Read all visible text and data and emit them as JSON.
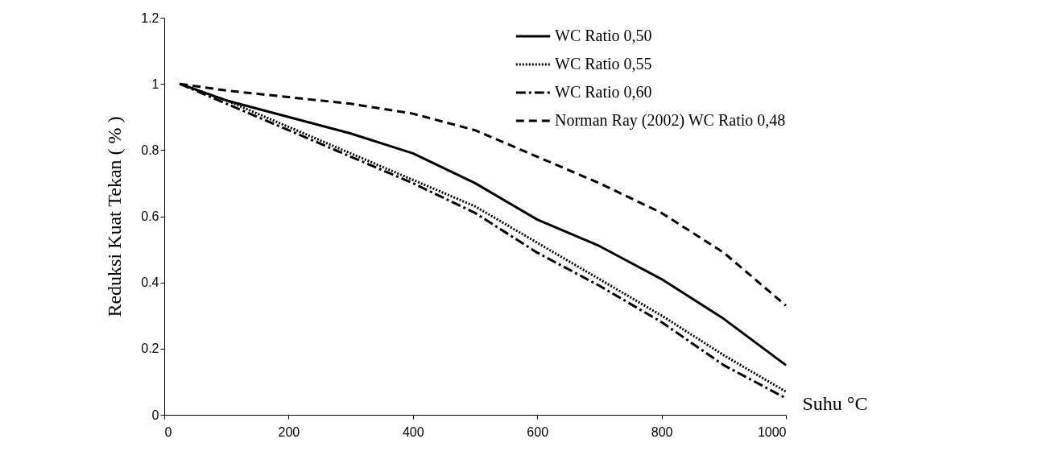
{
  "chart_data": {
    "type": "line",
    "xlabel": "Suhu °C",
    "ylabel": "Reduksi Kuat Tekan ( % )",
    "xlim": [
      0,
      1000
    ],
    "xticks": [
      0,
      200,
      400,
      600,
      800,
      1000
    ],
    "ylim": [
      0,
      1.2
    ],
    "yticks": [
      0,
      0.2,
      0.4,
      0.6,
      0.8,
      1,
      1.2
    ],
    "grid": false,
    "legend": "top right",
    "marker": "none",
    "x": [
      25,
      100,
      200,
      300,
      400,
      500,
      600,
      700,
      800,
      900,
      1000
    ],
    "series": [
      {
        "name": "WC Ratio 0,50",
        "color": "#000000",
        "line_style": "solid",
        "values": [
          1.0,
          0.95,
          0.9,
          0.85,
          0.79,
          0.7,
          0.59,
          0.51,
          0.41,
          0.29,
          0.15
        ]
      },
      {
        "name": "WC Ratio 0,55",
        "color": "#000000",
        "line_style": "dotted",
        "values": [
          1.0,
          0.95,
          0.87,
          0.79,
          0.71,
          0.63,
          0.52,
          0.41,
          0.3,
          0.18,
          0.07
        ]
      },
      {
        "name": "WC Ratio 0,60",
        "color": "#000000",
        "line_style": "dashdot",
        "values": [
          1.0,
          0.94,
          0.86,
          0.78,
          0.7,
          0.61,
          0.49,
          0.39,
          0.28,
          0.15,
          0.05
        ]
      },
      {
        "name": "Norman Ray (2002) WC Ratio 0,48",
        "color": "#000000",
        "line_style": "dashed",
        "values": [
          1.0,
          0.98,
          0.96,
          0.94,
          0.91,
          0.86,
          0.78,
          0.7,
          0.61,
          0.49,
          0.33
        ]
      }
    ]
  }
}
